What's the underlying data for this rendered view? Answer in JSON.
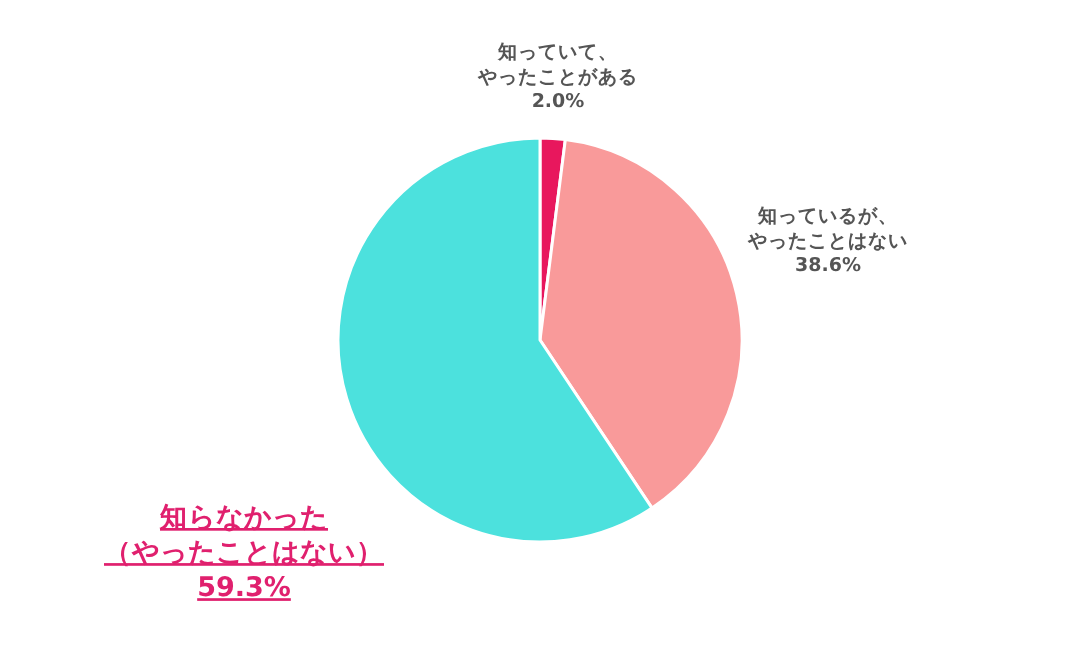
{
  "chart_data": {
    "type": "pie",
    "categories": [
      "知っていて、やったことがある",
      "知っているが、やったことはない",
      "知らなかった（やったことはない）"
    ],
    "values": [
      2.0,
      38.6,
      59.3
    ],
    "colors": [
      "#e8175d",
      "#f99a9a",
      "#4ce1dd"
    ],
    "value_labels": [
      "2.0%",
      "38.6%",
      "59.3%"
    ]
  }
}
